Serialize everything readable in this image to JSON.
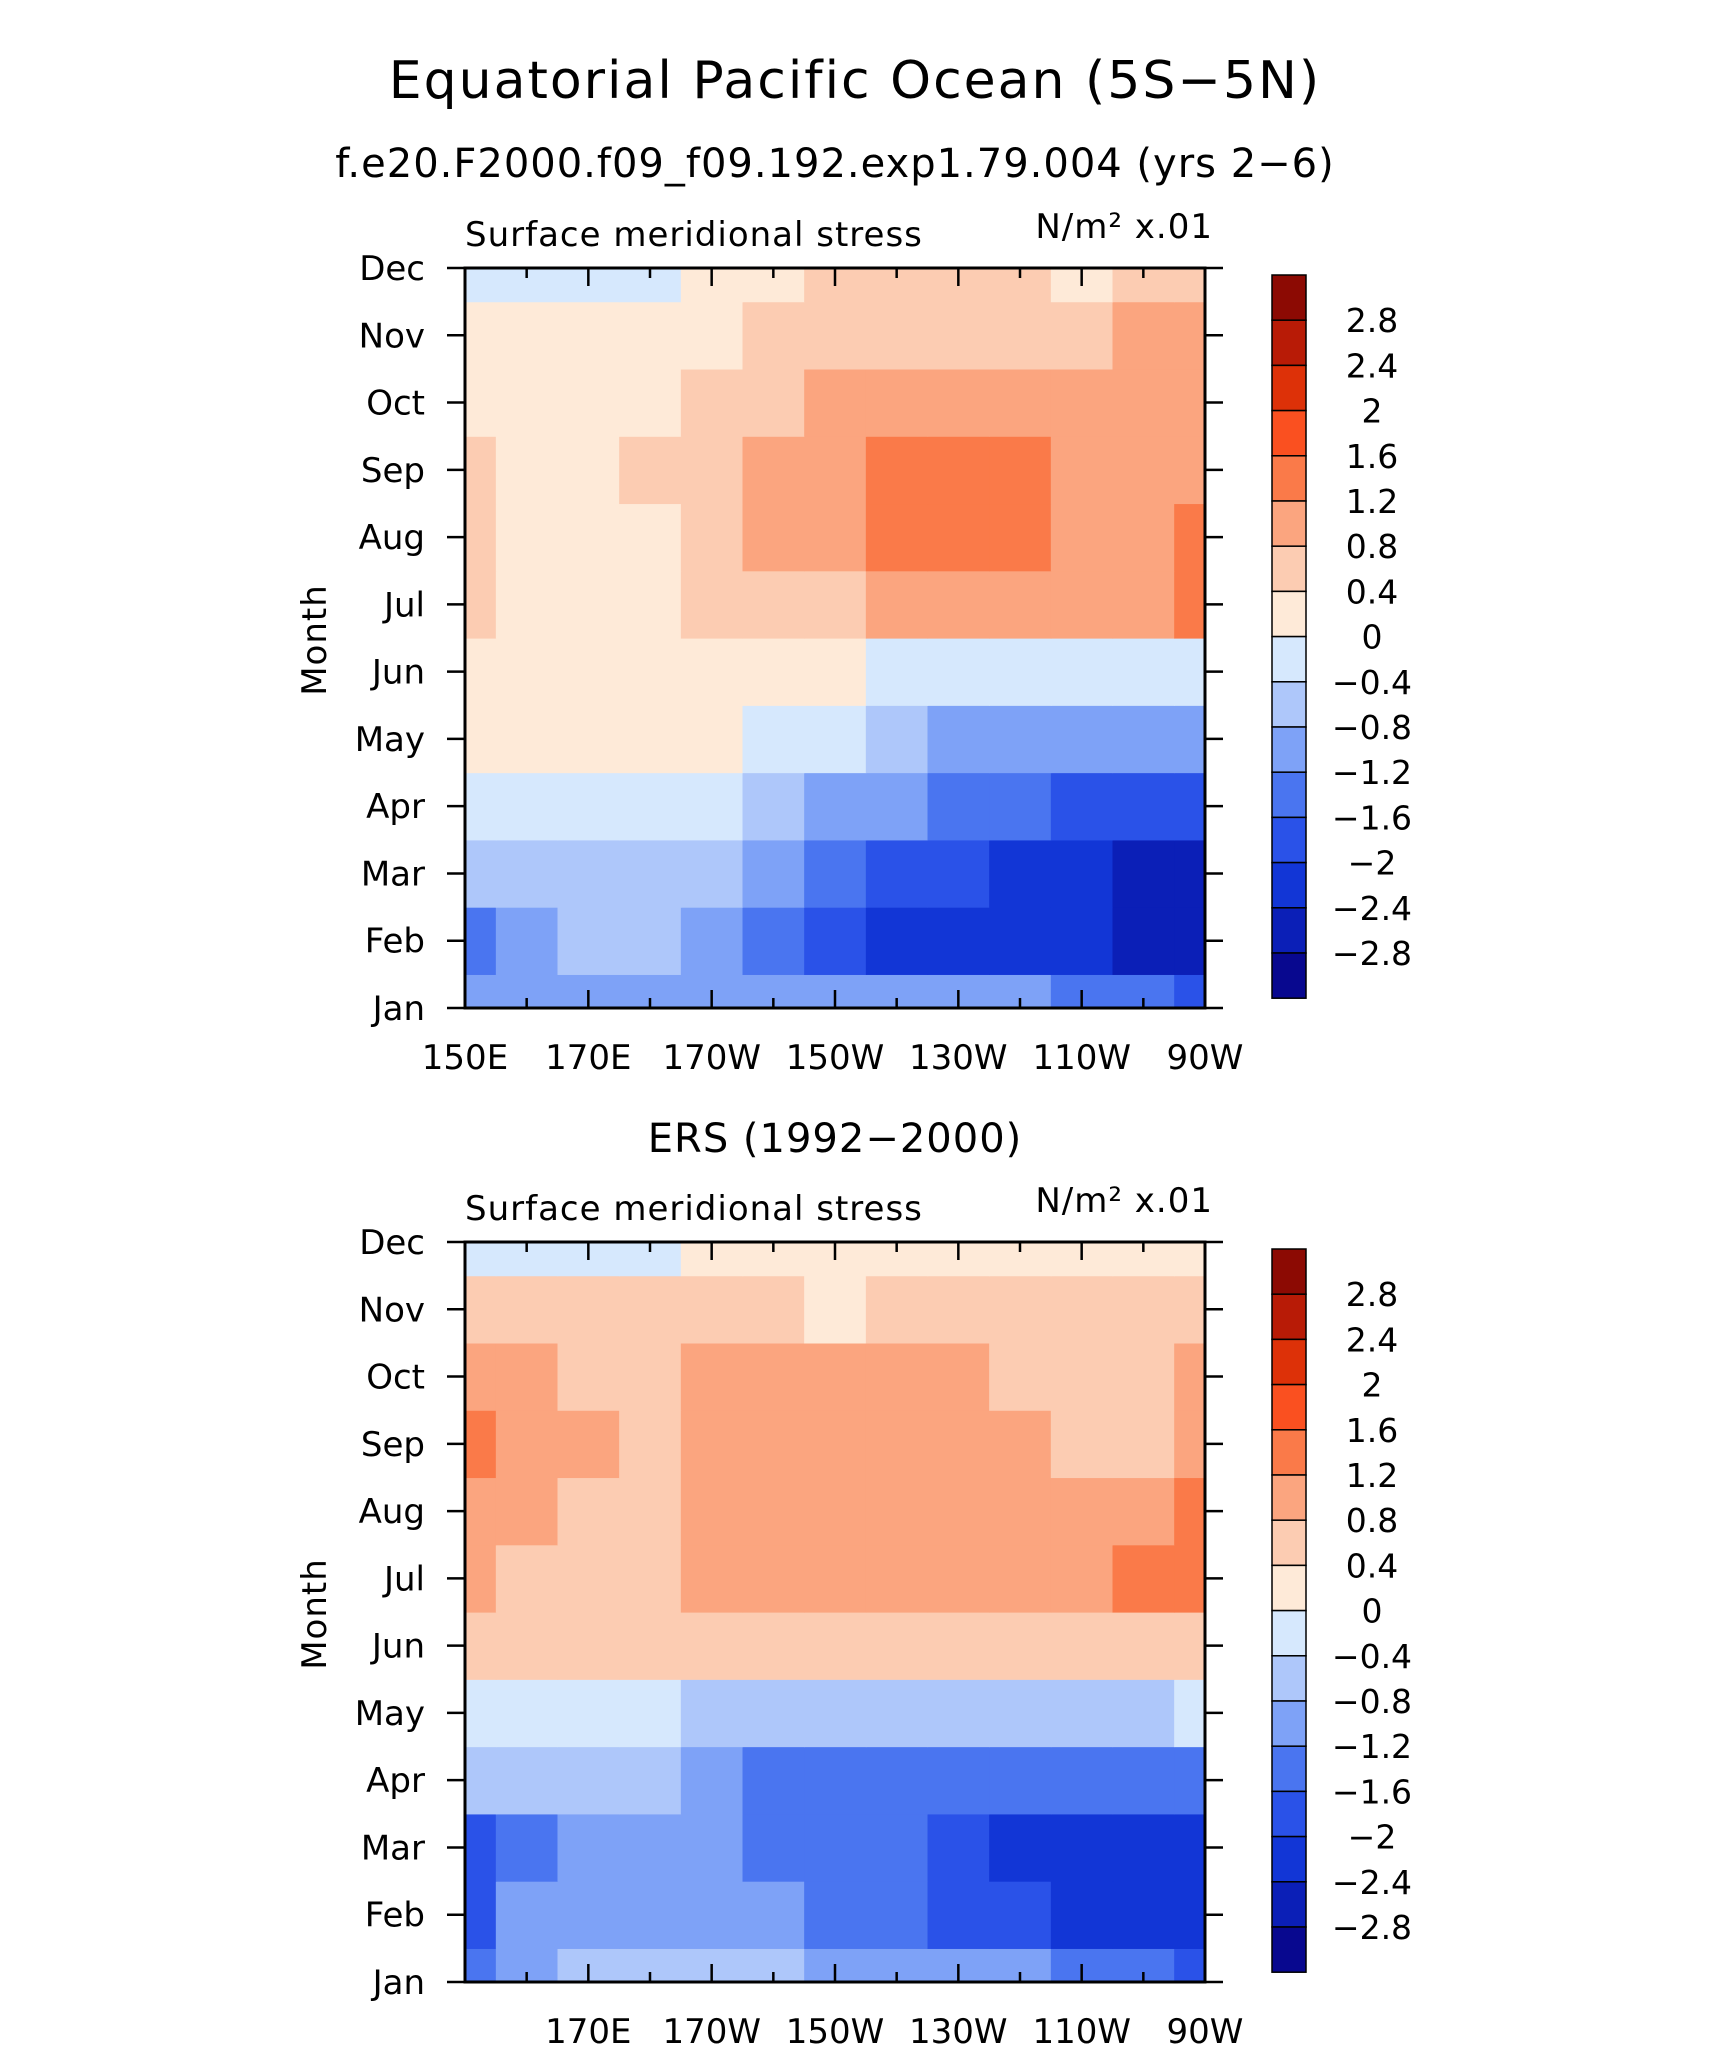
{
  "figure": {
    "title": "Equatorial Pacific Ocean (5S−5N)"
  },
  "chart_data": [
    {
      "type": "heatmap",
      "panel_title": "f.e20.F2000.f09_f09.192.exp1.79.004 (yrs 2−6)",
      "left_string": "Surface meridional stress",
      "right_string": "N/m² x.01",
      "ylabel": "Month",
      "xlabel": "",
      "x_tick_labels": [
        "150E",
        "170E",
        "170W",
        "150W",
        "130W",
        "110W",
        "90W"
      ],
      "y_tick_labels": [
        "Jan",
        "Feb",
        "Mar",
        "Apr",
        "May",
        "Jun",
        "Jul",
        "Aug",
        "Sep",
        "Oct",
        "Nov",
        "Dec"
      ],
      "xlim_deg_east": [
        150,
        270
      ],
      "x_major_ticks_deg_east": [
        150,
        170,
        190,
        210,
        230,
        250,
        270
      ],
      "x_lon_deg_east": [
        150,
        160,
        170,
        180,
        190,
        200,
        210,
        220,
        230,
        240,
        250,
        260,
        270
      ],
      "months": [
        "Jan",
        "Feb",
        "Mar",
        "Apr",
        "May",
        "Jun",
        "Jul",
        "Aug",
        "Sep",
        "Oct",
        "Nov",
        "Dec"
      ],
      "values_by_month": [
        [
          -1.0,
          -1.0,
          -0.9,
          -0.9,
          -1.0,
          -1.0,
          -1.1,
          -1.1,
          -1.1,
          -1.2,
          -1.3,
          -1.5,
          -1.8
        ],
        [
          -1.3,
          -0.9,
          -0.8,
          -0.8,
          -1.0,
          -1.4,
          -1.8,
          -2.1,
          -2.2,
          -2.3,
          -2.4,
          -2.6,
          -2.7
        ],
        [
          -0.8,
          -0.8,
          -0.7,
          -0.6,
          -0.7,
          -1.0,
          -1.5,
          -1.8,
          -2.0,
          -2.1,
          -2.3,
          -2.6,
          -2.7
        ],
        [
          -0.3,
          -0.3,
          -0.3,
          -0.3,
          -0.4,
          -0.6,
          -0.9,
          -1.2,
          -1.5,
          -1.6,
          -1.7,
          -1.8,
          -1.9
        ],
        [
          0.1,
          0.1,
          0.1,
          0.1,
          0.0,
          -0.2,
          -0.4,
          -0.7,
          -0.9,
          -0.9,
          -1.0,
          -1.0,
          -0.9
        ],
        [
          0.2,
          0.2,
          0.2,
          0.2,
          0.2,
          0.1,
          0.0,
          -0.1,
          -0.2,
          -0.3,
          -0.3,
          -0.3,
          -0.2
        ],
        [
          0.4,
          0.3,
          0.3,
          0.3,
          0.4,
          0.6,
          0.7,
          0.8,
          0.8,
          0.9,
          1.1,
          1.1,
          1.3
        ],
        [
          0.5,
          0.3,
          0.3,
          0.3,
          0.5,
          0.8,
          1.0,
          1.2,
          1.3,
          1.2,
          1.0,
          1.0,
          1.3
        ],
        [
          0.4,
          0.3,
          0.3,
          0.4,
          0.6,
          0.8,
          1.1,
          1.3,
          1.3,
          1.2,
          0.9,
          0.8,
          0.9
        ],
        [
          0.3,
          0.2,
          0.2,
          0.3,
          0.4,
          0.6,
          0.8,
          0.9,
          1.0,
          0.9,
          0.8,
          0.8,
          0.9
        ],
        [
          0.1,
          0.2,
          0.2,
          0.2,
          0.3,
          0.4,
          0.5,
          0.6,
          0.6,
          0.6,
          0.5,
          0.8,
          0.9
        ],
        [
          -0.1,
          -0.1,
          -0.3,
          -0.3,
          0.1,
          0.2,
          0.4,
          0.4,
          0.5,
          0.5,
          0.3,
          0.4,
          0.6
        ]
      ],
      "levels": [
        -2.8,
        -2.4,
        -2.0,
        -1.6,
        -1.2,
        -0.8,
        -0.4,
        0,
        0.4,
        0.8,
        1.2,
        1.6,
        2.0,
        2.4,
        2.8
      ],
      "colorbar_labels": [
        "2.8",
        "2.4",
        "2",
        "1.6",
        "1.2",
        "0.8",
        "0.4",
        "0",
        "−0.4",
        "−0.8",
        "−1.2",
        "−1.6",
        "−2",
        "−2.4",
        "−2.8"
      ]
    },
    {
      "type": "heatmap",
      "panel_title": "ERS (1992−2000)",
      "left_string": "Surface meridional stress",
      "right_string": "N/m² x.01",
      "ylabel": "Month",
      "xlabel": "",
      "x_tick_labels": [
        "170E",
        "170W",
        "150W",
        "130W",
        "110W",
        "90W"
      ],
      "y_tick_labels": [
        "Jan",
        "Feb",
        "Mar",
        "Apr",
        "May",
        "Jun",
        "Jul",
        "Aug",
        "Sep",
        "Oct",
        "Nov",
        "Dec"
      ],
      "xlim_deg_east": [
        150,
        270
      ],
      "x_major_ticks_deg_east": [
        170,
        190,
        210,
        230,
        250,
        270
      ],
      "x_lon_deg_east": [
        150,
        160,
        170,
        180,
        190,
        200,
        210,
        220,
        230,
        240,
        250,
        260,
        270
      ],
      "months": [
        "Jan",
        "Feb",
        "Mar",
        "Apr",
        "May",
        "Jun",
        "Jul",
        "Aug",
        "Sep",
        "Oct",
        "Nov",
        "Dec"
      ],
      "values_by_month": [
        [
          -1.3,
          -1.2,
          -0.8,
          -0.7,
          -0.7,
          -0.8,
          -0.9,
          -1.0,
          -1.1,
          -1.2,
          -1.4,
          -1.6,
          -1.8
        ],
        [
          -1.8,
          -1.2,
          -1.0,
          -0.9,
          -1.0,
          -1.2,
          -1.4,
          -1.6,
          -1.8,
          -2.0,
          -2.2,
          -2.3,
          -2.3
        ],
        [
          -2.0,
          -1.5,
          -1.0,
          -1.0,
          -1.2,
          -1.3,
          -1.4,
          -1.6,
          -2.0,
          -2.2,
          -2.3,
          -2.4,
          -2.3
        ],
        [
          -0.8,
          -0.8,
          -0.7,
          -0.8,
          -1.0,
          -1.3,
          -1.5,
          -1.5,
          -1.5,
          -1.6,
          -1.6,
          -1.6,
          -1.5
        ],
        [
          -0.2,
          -0.3,
          -0.3,
          -0.4,
          -0.5,
          -0.6,
          -0.6,
          -0.6,
          -0.6,
          -0.5,
          -0.5,
          -0.5,
          -0.4
        ],
        [
          0.6,
          0.5,
          0.4,
          0.4,
          0.5,
          0.4,
          0.4,
          0.5,
          0.6,
          0.5,
          0.5,
          0.5,
          0.4
        ],
        [
          0.8,
          0.7,
          0.6,
          0.7,
          0.8,
          0.8,
          0.9,
          0.9,
          0.9,
          0.9,
          1.1,
          1.2,
          1.2
        ],
        [
          0.8,
          0.9,
          0.7,
          0.7,
          0.9,
          1.0,
          1.0,
          1.0,
          1.0,
          0.8,
          0.8,
          1.1,
          1.2
        ],
        [
          1.3,
          0.9,
          0.8,
          0.7,
          0.9,
          0.9,
          1.0,
          1.0,
          1.0,
          0.8,
          0.7,
          0.7,
          1.0
        ],
        [
          0.8,
          0.8,
          0.7,
          0.7,
          0.8,
          0.8,
          0.8,
          0.8,
          0.8,
          0.7,
          0.5,
          0.7,
          1.1
        ],
        [
          0.4,
          0.5,
          0.5,
          0.4,
          0.4,
          0.4,
          0.3,
          0.4,
          0.4,
          0.4,
          0.5,
          0.6,
          0.6
        ],
        [
          -0.1,
          -0.1,
          -0.2,
          -0.1,
          0.1,
          0.2,
          0.2,
          0.3,
          0.3,
          0.3,
          0.2,
          0.2,
          0.3
        ]
      ],
      "levels": [
        -2.8,
        -2.4,
        -2.0,
        -1.6,
        -1.2,
        -0.8,
        -0.4,
        0,
        0.4,
        0.8,
        1.2,
        1.6,
        2.0,
        2.4,
        2.8
      ],
      "colorbar_labels": [
        "2.8",
        "2.4",
        "2",
        "1.6",
        "1.2",
        "0.8",
        "0.4",
        "0",
        "−0.4",
        "−0.8",
        "−1.2",
        "−1.6",
        "−2",
        "−2.4",
        "−2.8"
      ]
    }
  ],
  "colormap": [
    "#08088f",
    "#0b1fb7",
    "#1236d6",
    "#2a52e8",
    "#4a75f0",
    "#7ea2f7",
    "#aec7fa",
    "#d6e8fd",
    "#feead8",
    "#fcccb2",
    "#fba57f",
    "#fa7a49",
    "#fa5020",
    "#dd3108",
    "#b81b06",
    "#8c0a03"
  ]
}
